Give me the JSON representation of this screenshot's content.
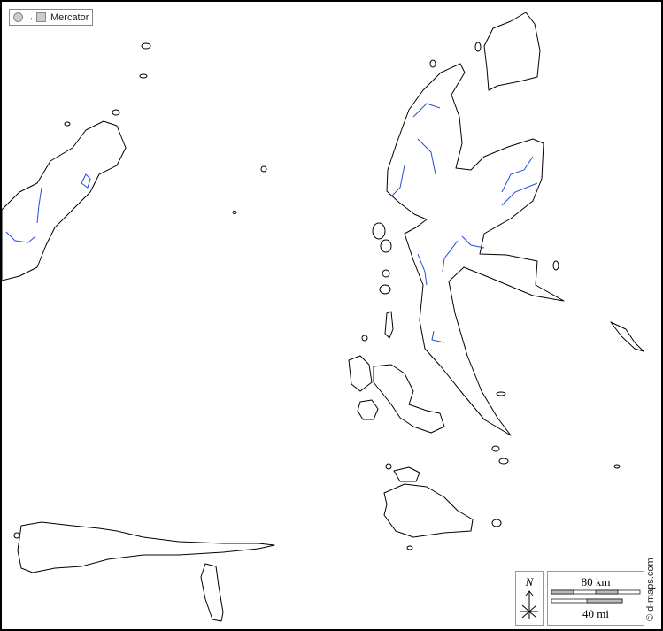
{
  "projection": {
    "label": "Mercator",
    "icon": "circle-to-square-icon"
  },
  "compass": {
    "label": "N"
  },
  "scale": {
    "km_label": "80 km",
    "mi_label": "40 mi"
  },
  "credit": "© d-maps.com",
  "colors": {
    "coast": "#000000",
    "river": "#1f4fd8",
    "sea": "#ffffff",
    "land": "#ffffff"
  }
}
